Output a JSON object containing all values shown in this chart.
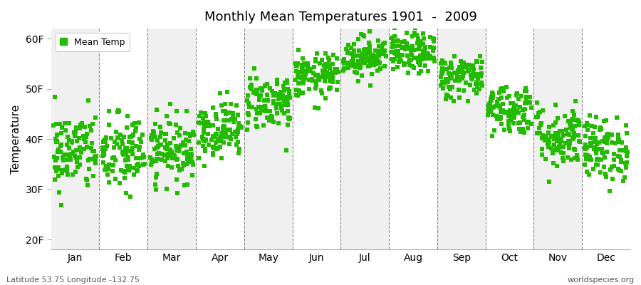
{
  "title": "Monthly Mean Temperatures 1901  -  2009",
  "ylabel": "Temperature",
  "ytick_labels": [
    "20F",
    "30F",
    "40F",
    "50F",
    "60F"
  ],
  "ytick_values": [
    20,
    30,
    40,
    50,
    60
  ],
  "ylim": [
    18,
    62
  ],
  "xlim": [
    0,
    12
  ],
  "xtick_positions": [
    0.5,
    1.5,
    2.5,
    3.5,
    4.5,
    5.5,
    6.5,
    7.5,
    8.5,
    9.5,
    10.5,
    11.5
  ],
  "xtick_labels": [
    "Jan",
    "Feb",
    "Mar",
    "Apr",
    "May",
    "Jun",
    "Jul",
    "Aug",
    "Sep",
    "Oct",
    "Nov",
    "Dec"
  ],
  "vline_positions": [
    1,
    2,
    3,
    4,
    5,
    6,
    7,
    8,
    9,
    10,
    11
  ],
  "marker_color": "#22bb00",
  "marker_size": 18,
  "bg_color_odd": "#f0f0f0",
  "bg_color_even": "#ffffff",
  "legend_label": "Mean Temp",
  "footer_left": "Latitude 53.75 Longitude -132.75",
  "footer_right": "worldspecies.org",
  "monthly_means": [
    37.5,
    37.0,
    38.0,
    42.0,
    47.5,
    52.5,
    56.5,
    57.0,
    52.5,
    46.0,
    40.5,
    38.0
  ],
  "monthly_stds": [
    4.0,
    4.0,
    3.2,
    2.8,
    2.8,
    2.2,
    2.0,
    2.0,
    2.2,
    2.5,
    3.2,
    3.2
  ],
  "n_years": 109,
  "seed": 42
}
